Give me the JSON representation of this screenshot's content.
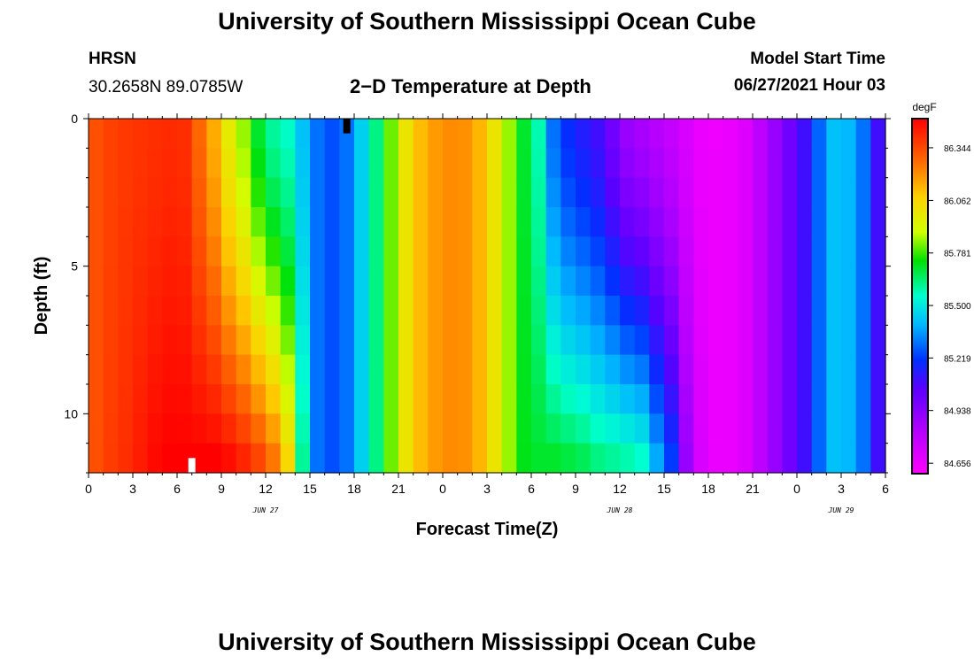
{
  "header": {
    "title": "University of Southern Mississippi Ocean Cube",
    "station": "HRSN",
    "coords": "30.2658N  89.0785W",
    "subtitle": "2−D Temperature at Depth",
    "model_label": "Model Start Time",
    "model_time": "06/27/2021 Hour 03"
  },
  "footer": {
    "title": "University of Southern Mississippi Ocean Cube"
  },
  "chart_data": {
    "type": "heatmap",
    "title": "2−D Temperature at Depth",
    "xlabel": "Forecast Time(Z)",
    "ylabel": "Depth (ft)",
    "xlim": [
      0,
      54
    ],
    "ylim": [
      0,
      12
    ],
    "x_ticks": [
      0,
      3,
      6,
      9,
      12,
      15,
      18,
      21,
      24,
      27,
      30,
      33,
      36,
      39,
      42,
      45,
      48,
      51,
      54
    ],
    "x_tick_labels": [
      "0",
      "3",
      "6",
      "9",
      "12",
      "15",
      "18",
      "21",
      "0",
      "3",
      "6",
      "9",
      "12",
      "15",
      "18",
      "21",
      "0",
      "3",
      "6"
    ],
    "y_ticks": [
      0,
      5,
      10
    ],
    "y_tick_labels": [
      "0",
      "5",
      "10"
    ],
    "date_labels": [
      {
        "x": 12,
        "text": "JUN 27"
      },
      {
        "x": 36,
        "text": "JUN 28"
      },
      {
        "x": 51,
        "text": "JUN 29"
      }
    ],
    "colorbar": {
      "unit": "degF",
      "min": 84.6,
      "max": 86.5,
      "tick_values": [
        86.344,
        86.062,
        85.781,
        85.5,
        85.219,
        84.938,
        84.656
      ],
      "tick_labels": [
        "86.344",
        "86.062",
        "85.781",
        "85.500",
        "85.219",
        "84.938",
        "84.656"
      ]
    },
    "profile": {
      "hours": [
        0,
        1,
        2,
        3,
        4,
        5,
        6,
        7,
        8,
        9,
        10,
        11,
        12,
        13,
        14,
        15,
        16,
        17,
        18,
        19,
        20,
        21,
        22,
        23,
        24,
        25,
        26,
        27,
        28,
        29,
        30,
        31,
        32,
        33,
        34,
        35,
        36,
        37,
        38,
        39,
        40,
        41,
        42,
        43,
        44,
        45,
        46,
        47,
        48,
        49,
        50,
        51,
        52,
        53,
        54
      ],
      "surface": [
        86.33,
        86.36,
        86.38,
        86.39,
        86.4,
        86.41,
        86.4,
        86.28,
        86.15,
        85.98,
        85.85,
        85.7,
        85.6,
        85.56,
        85.42,
        85.3,
        85.25,
        85.3,
        85.45,
        85.62,
        85.82,
        86.0,
        86.12,
        86.18,
        86.21,
        86.2,
        86.13,
        86.0,
        85.85,
        85.7,
        85.58,
        85.3,
        85.2,
        85.15,
        85.1,
        85.0,
        84.9,
        84.86,
        84.82,
        84.78,
        84.72,
        84.66,
        84.65,
        84.66,
        84.7,
        84.8,
        84.9,
        85.0,
        85.1,
        85.28,
        85.42,
        85.4,
        85.3,
        85.1,
        84.95
      ],
      "bottom": [
        86.33,
        86.37,
        86.4,
        86.44,
        86.48,
        86.5,
        86.5,
        86.5,
        86.5,
        86.47,
        86.42,
        86.35,
        86.25,
        86.05,
        85.6,
        85.3,
        85.25,
        85.3,
        85.45,
        85.62,
        85.82,
        86.0,
        86.12,
        86.18,
        86.21,
        86.2,
        86.13,
        86.0,
        85.85,
        85.72,
        85.7,
        85.7,
        85.68,
        85.66,
        85.62,
        85.6,
        85.58,
        85.55,
        85.38,
        85.22,
        84.9,
        84.72,
        84.66,
        84.66,
        84.7,
        84.8,
        84.9,
        85.0,
        85.1,
        85.28,
        85.42,
        85.4,
        85.3,
        85.1,
        84.95
      ]
    },
    "markers": [
      {
        "x": 7.0,
        "y_top": 11.5,
        "y_bottom": 12,
        "color": "#ffffff"
      },
      {
        "x": 17.5,
        "y_top": 0,
        "y_bottom": 0.5,
        "color": "#000000"
      }
    ]
  }
}
